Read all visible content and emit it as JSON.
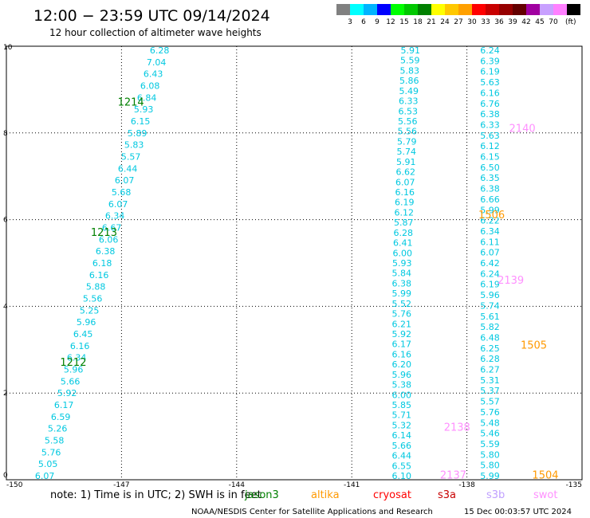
{
  "header": {
    "title": "12:00 − 23:59 UTC 09/14/2024",
    "subtitle": "12 hour collection of altimeter wave heights"
  },
  "colorbar": {
    "colors": [
      "#808080",
      "#00ffff",
      "#00b4ff",
      "#0000ff",
      "#00ff00",
      "#00c800",
      "#008000",
      "#ffff00",
      "#ffc800",
      "#ffa000",
      "#ff0000",
      "#c80000",
      "#960000",
      "#640000",
      "#a000a0",
      "#c8a0ff",
      "#ff80ff",
      "#000000"
    ],
    "labels": [
      "3",
      "6",
      "9",
      "12",
      "15",
      "18",
      "21",
      "24",
      "27",
      "30",
      "33",
      "36",
      "39",
      "42",
      "45",
      "70"
    ],
    "unit": "(ft)"
  },
  "axes": {
    "x_ticks": [
      "-150",
      "-147",
      "-144",
      "-141",
      "-138",
      "-135"
    ],
    "y_ticks": [
      "10",
      "8",
      "6",
      "4",
      "2",
      "0"
    ]
  },
  "legend": {
    "note": "note: 1) Time is in UTC; 2) SWH is in feet",
    "satellites": [
      {
        "name": "jason3",
        "color": "#008000"
      },
      {
        "name": "altika",
        "color": "#ff9900"
      },
      {
        "name": "cryosat",
        "color": "#ff0000"
      },
      {
        "name": "s3a",
        "color": "#c80000"
      },
      {
        "name": "s3b",
        "color": "#c0a0ff"
      },
      {
        "name": "swot",
        "color": "#ff90ff"
      }
    ]
  },
  "footer": {
    "credit": "NOAA/NESDIS Center for Satellite Applications and Research",
    "timestamp": "15 Dec 00:03:57 UTC 2024"
  },
  "chart_data": {
    "type": "scatter",
    "title": "12:00 − 23:59 UTC 09/14/2024",
    "subtitle": "12 hour collection of altimeter wave heights",
    "xlim": [
      -150,
      -135
    ],
    "ylim": [
      0,
      10
    ],
    "grid": true,
    "tracks": [
      {
        "label_x": -149.0,
        "values": [
          "6.07",
          "5.05",
          "5.76",
          "5.58",
          "5.26",
          "6.59",
          "6.17",
          "5.92",
          "5.66",
          "5.96",
          "6.34",
          "6.16",
          "6.45",
          "5.96",
          "5.25",
          "5.56",
          "5.88",
          "6.16",
          "6.18",
          "6.38",
          "6.06",
          "6.67",
          "6.34",
          "6.07",
          "5.68",
          "6.07",
          "6.44",
          "5.57",
          "5.83",
          "5.89",
          "6.15",
          "5.93",
          "6.84",
          "6.08",
          "6.43",
          "7.04",
          "6.28"
        ]
      },
      {
        "label_x": -139.7,
        "values": [
          "6.10",
          "6.55",
          "6.44",
          "5.66",
          "6.14",
          "5.32",
          "5.71",
          "5.85",
          "6.00",
          "5.38",
          "5.96",
          "6.20",
          "6.16",
          "6.17",
          "5.92",
          "6.21",
          "5.76",
          "5.52",
          "5.99",
          "6.38",
          "5.84",
          "5.93",
          "6.00",
          "6.41",
          "6.28",
          "5.87",
          "6.12",
          "6.19",
          "6.16",
          "6.07",
          "6.62",
          "5.91",
          "5.74",
          "5.79",
          "5.56",
          "5.56",
          "6.53",
          "6.33",
          "5.49",
          "5.86",
          "5.83",
          "5.59",
          "5.91"
        ]
      },
      {
        "label_x": -137.4,
        "values": [
          "5.99",
          "5.80",
          "5.80",
          "5.59",
          "5.46",
          "5.48",
          "5.76",
          "5.57",
          "5.37",
          "5.31",
          "6.27",
          "6.28",
          "6.25",
          "6.48",
          "5.82",
          "5.61",
          "5.74",
          "5.96",
          "6.19",
          "6.24",
          "6.42",
          "6.07",
          "6.11",
          "6.34",
          "6.22",
          "5.99",
          "6.66",
          "6.38",
          "6.35",
          "6.50",
          "6.15",
          "6.12",
          "5.63",
          "6.33",
          "6.38",
          "6.76",
          "6.16",
          "5.63",
          "6.19",
          "6.39",
          "6.24"
        ]
      }
    ],
    "pass_labels": [
      {
        "text": "1212",
        "satellite": "jason3",
        "x": -148.6,
        "y": 2.7
      },
      {
        "text": "1213",
        "satellite": "jason3",
        "x": -147.8,
        "y": 5.7
      },
      {
        "text": "1214",
        "satellite": "jason3",
        "x": -147.1,
        "y": 8.7
      },
      {
        "text": "1504",
        "satellite": "altika",
        "x": -136.3,
        "y": 0.1
      },
      {
        "text": "1505",
        "satellite": "altika",
        "x": -136.6,
        "y": 3.1
      },
      {
        "text": "1506",
        "satellite": "altika",
        "x": -137.7,
        "y": 6.1
      },
      {
        "text": "2137",
        "satellite": "swot",
        "x": -138.7,
        "y": 0.1
      },
      {
        "text": "2138",
        "satellite": "swot",
        "x": -138.6,
        "y": 1.2
      },
      {
        "text": "2139",
        "satellite": "swot",
        "x": -137.2,
        "y": 4.6
      },
      {
        "text": "2140",
        "satellite": "swot",
        "x": -136.9,
        "y": 8.1
      }
    ]
  }
}
